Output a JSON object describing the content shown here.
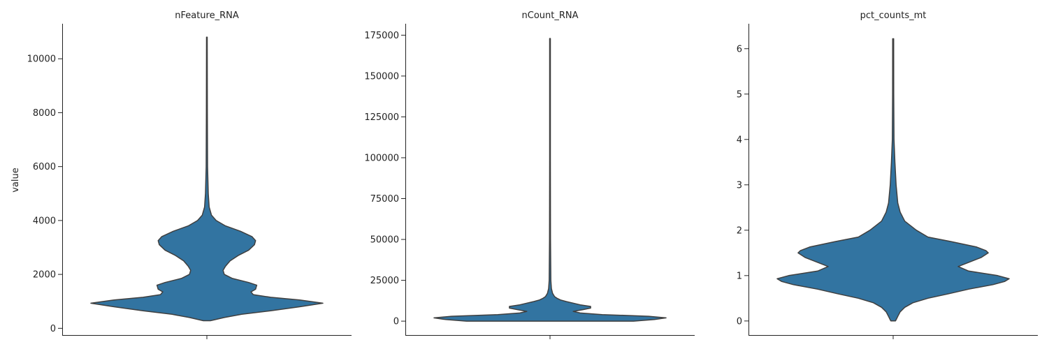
{
  "chart_data": [
    {
      "type": "violin",
      "title": "nFeature_RNA",
      "xlabel": "",
      "ylabel": "value",
      "ylim": [
        -250,
        11300
      ],
      "yticks": [
        0,
        2000,
        4000,
        6000,
        8000,
        10000
      ],
      "ytick_labels": [
        "0",
        "2000",
        "4000",
        "6000",
        "8000",
        "10000"
      ],
      "grid": false,
      "color": "#3274a1",
      "density": [
        {
          "value": 280,
          "width": 0.03
        },
        {
          "value": 400,
          "width": 0.15
        },
        {
          "value": 520,
          "width": 0.3
        },
        {
          "value": 650,
          "width": 0.55
        },
        {
          "value": 800,
          "width": 0.8
        },
        {
          "value": 930,
          "width": 1.0
        },
        {
          "value": 1050,
          "width": 0.8
        },
        {
          "value": 1150,
          "width": 0.55
        },
        {
          "value": 1250,
          "width": 0.4
        },
        {
          "value": 1350,
          "width": 0.38
        },
        {
          "value": 1450,
          "width": 0.42
        },
        {
          "value": 1600,
          "width": 0.43
        },
        {
          "value": 1700,
          "width": 0.36
        },
        {
          "value": 1850,
          "width": 0.22
        },
        {
          "value": 2000,
          "width": 0.15
        },
        {
          "value": 2150,
          "width": 0.14
        },
        {
          "value": 2300,
          "width": 0.16
        },
        {
          "value": 2500,
          "width": 0.2
        },
        {
          "value": 2700,
          "width": 0.27
        },
        {
          "value": 2900,
          "width": 0.36
        },
        {
          "value": 3100,
          "width": 0.41
        },
        {
          "value": 3250,
          "width": 0.42
        },
        {
          "value": 3400,
          "width": 0.39
        },
        {
          "value": 3600,
          "width": 0.29
        },
        {
          "value": 3800,
          "width": 0.16
        },
        {
          "value": 4000,
          "width": 0.08
        },
        {
          "value": 4200,
          "width": 0.04
        },
        {
          "value": 4500,
          "width": 0.02
        },
        {
          "value": 5000,
          "width": 0.012
        },
        {
          "value": 6000,
          "width": 0.006
        },
        {
          "value": 8000,
          "width": 0.004
        },
        {
          "value": 10800,
          "width": 0.003
        }
      ]
    },
    {
      "type": "violin",
      "title": "nCount_RNA",
      "xlabel": "",
      "ylabel": "",
      "ylim": [
        -8500,
        182000
      ],
      "yticks": [
        0,
        25000,
        50000,
        75000,
        100000,
        125000,
        150000,
        175000
      ],
      "ytick_labels": [
        "0",
        "25000",
        "50000",
        "75000",
        "100000",
        "125000",
        "150000",
        "175000"
      ],
      "grid": false,
      "color": "#3274a1",
      "density": [
        {
          "value": 0,
          "width": 0.72
        },
        {
          "value": 1000,
          "width": 0.9
        },
        {
          "value": 2000,
          "width": 1.0
        },
        {
          "value": 3000,
          "width": 0.85
        },
        {
          "value": 4000,
          "width": 0.45
        },
        {
          "value": 5000,
          "width": 0.26
        },
        {
          "value": 6000,
          "width": 0.2
        },
        {
          "value": 7000,
          "width": 0.28
        },
        {
          "value": 8000,
          "width": 0.35
        },
        {
          "value": 9000,
          "width": 0.35
        },
        {
          "value": 10000,
          "width": 0.26
        },
        {
          "value": 11000,
          "width": 0.2
        },
        {
          "value": 12000,
          "width": 0.14
        },
        {
          "value": 13000,
          "width": 0.09
        },
        {
          "value": 14000,
          "width": 0.06
        },
        {
          "value": 15000,
          "width": 0.04
        },
        {
          "value": 17000,
          "width": 0.022
        },
        {
          "value": 20000,
          "width": 0.012
        },
        {
          "value": 25000,
          "width": 0.007
        },
        {
          "value": 50000,
          "width": 0.004
        },
        {
          "value": 100000,
          "width": 0.003
        },
        {
          "value": 173000,
          "width": 0.003
        }
      ]
    },
    {
      "type": "violin",
      "title": "pct_counts_mt",
      "xlabel": "",
      "ylabel": "",
      "ylim": [
        -0.31,
        6.55
      ],
      "yticks": [
        0,
        1,
        2,
        3,
        4,
        5,
        6
      ],
      "ytick_labels": [
        "0",
        "1",
        "2",
        "3",
        "4",
        "5",
        "6"
      ],
      "grid": false,
      "color": "#3274a1",
      "density": [
        {
          "value": 0.0,
          "width": 0.02
        },
        {
          "value": 0.05,
          "width": 0.03
        },
        {
          "value": 0.1,
          "width": 0.04
        },
        {
          "value": 0.2,
          "width": 0.06
        },
        {
          "value": 0.3,
          "width": 0.1
        },
        {
          "value": 0.4,
          "width": 0.17
        },
        {
          "value": 0.5,
          "width": 0.3
        },
        {
          "value": 0.6,
          "width": 0.48
        },
        {
          "value": 0.7,
          "width": 0.65
        },
        {
          "value": 0.8,
          "width": 0.86
        },
        {
          "value": 0.87,
          "width": 0.96
        },
        {
          "value": 0.93,
          "width": 1.0
        },
        {
          "value": 1.0,
          "width": 0.9
        },
        {
          "value": 1.1,
          "width": 0.65
        },
        {
          "value": 1.2,
          "width": 0.56
        },
        {
          "value": 1.3,
          "width": 0.66
        },
        {
          "value": 1.4,
          "width": 0.76
        },
        {
          "value": 1.5,
          "width": 0.82
        },
        {
          "value": 1.55,
          "width": 0.8
        },
        {
          "value": 1.63,
          "width": 0.72
        },
        {
          "value": 1.75,
          "width": 0.5
        },
        {
          "value": 1.85,
          "width": 0.3
        },
        {
          "value": 2.0,
          "width": 0.2
        },
        {
          "value": 2.2,
          "width": 0.1
        },
        {
          "value": 2.4,
          "width": 0.06
        },
        {
          "value": 2.6,
          "width": 0.04
        },
        {
          "value": 3.0,
          "width": 0.025
        },
        {
          "value": 3.5,
          "width": 0.015
        },
        {
          "value": 4.0,
          "width": 0.007
        },
        {
          "value": 5.0,
          "width": 0.005
        },
        {
          "value": 6.22,
          "width": 0.004
        }
      ]
    }
  ]
}
